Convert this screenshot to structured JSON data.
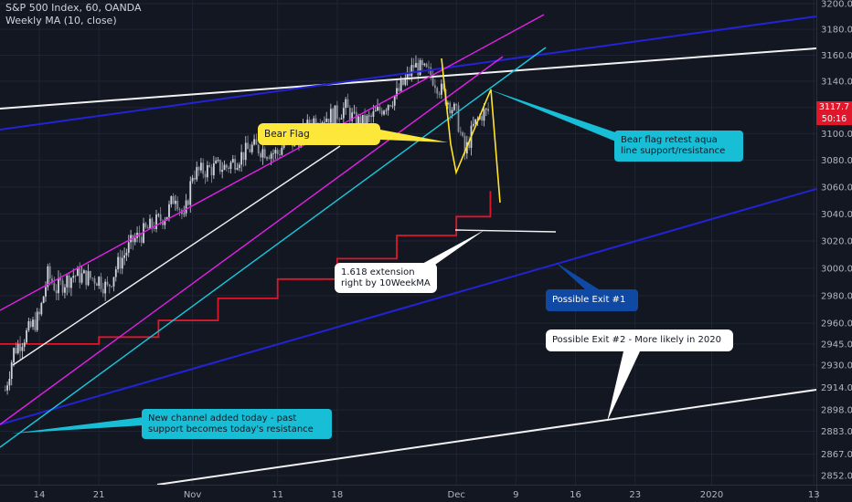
{
  "header": {
    "symbol_line": "S&P 500 Index, 60, OANDA",
    "indicator_line": "Weekly MA (10, close)"
  },
  "price_tags": {
    "last_price": "3117.7",
    "countdown": "50:16"
  },
  "colors": {
    "background": "#131722",
    "grid": "#1f2433",
    "axis_text": "#b2b5be",
    "candle_up": "#cfd3dc",
    "candle_down": "#8c909a",
    "ma_line": "#e0162b",
    "magenta": "#e321e8",
    "aqua": "#17c9dd",
    "blue": "#2323d6",
    "white_line": "#f2f2f2",
    "yellow": "#ffe529",
    "note_yellow": "#fde73a",
    "note_aqua": "#17bed6",
    "note_blue": "#1049a3",
    "note_white": "#ffffff"
  },
  "annotations": {
    "bear_flag": "Bear Flag",
    "bear_flag_retest": "Bear flag retest aqua\nline support/resistance",
    "extension": "1.618 extension\nright by 10WeekMA",
    "possible_exit_1": "Possible Exit #1",
    "possible_exit_2": "Possible Exit #2 - More likely in 2020",
    "new_channel": "New channel added today - past\nsupport becomes today's resistance"
  },
  "chart_data": {
    "type": "candlestick",
    "title": "S&P 500 Index, 60, OANDA",
    "indicator": "Weekly MA (10, close)",
    "x_axis": {
      "unit": "date (late 2019 - early 2020)",
      "tick_labels": [
        "14",
        "21",
        "Nov",
        "11",
        "18",
        "Dec",
        "9",
        "16",
        "23",
        "2020",
        "13"
      ]
    },
    "y_axis": {
      "position": "right",
      "tick_labels": [
        "3200.0",
        "3180.0",
        "3160.0",
        "3140.0",
        "3120.0",
        "3100.0",
        "3080.0",
        "3060.0",
        "3040.0",
        "3020.0",
        "3000.0",
        "2980.0",
        "2960.0",
        "2945.0",
        "2930.0",
        "2914.0",
        "2898.0",
        "2883.0",
        "2867.0",
        "2852.0"
      ],
      "ylim": [
        2846,
        3203
      ],
      "scale": "log"
    },
    "price_path": [
      [
        "Oct 10",
        2912
      ],
      [
        "Oct 11",
        2940
      ],
      [
        "Oct 14",
        2965
      ],
      [
        "Oct 15",
        2995
      ],
      [
        "Oct 16",
        2985
      ],
      [
        "Oct 17",
        2990
      ],
      [
        "Oct 18",
        2995
      ],
      [
        "Oct 21",
        2992
      ],
      [
        "Oct 22",
        2985
      ],
      [
        "Oct 23",
        3000
      ],
      [
        "Oct 24",
        3010
      ],
      [
        "Oct 25",
        3020
      ],
      [
        "Oct 28",
        3035
      ],
      [
        "Oct 29",
        3040
      ],
      [
        "Oct 30",
        3055
      ],
      [
        "Oct 31",
        3035
      ],
      [
        "Nov 1",
        3070
      ],
      [
        "Nov 4",
        3075
      ],
      [
        "Nov 5",
        3075
      ],
      [
        "Nov 6",
        3080
      ],
      [
        "Nov 7",
        3085
      ],
      [
        "Nov 8",
        3090
      ],
      [
        "Nov 11",
        3085
      ],
      [
        "Nov 12",
        3095
      ],
      [
        "Nov 13",
        3093
      ],
      [
        "Nov 14",
        3100
      ],
      [
        "Nov 15",
        3110
      ],
      [
        "Nov 18",
        3115
      ],
      [
        "Nov 19",
        3120
      ],
      [
        "Nov 20",
        3110
      ],
      [
        "Nov 21",
        3108
      ],
      [
        "Nov 22",
        3112
      ],
      [
        "Nov 25",
        3130
      ],
      [
        "Nov 26",
        3140
      ],
      [
        "Nov 27",
        3152
      ],
      [
        "Nov 29",
        3145
      ],
      [
        "Dec 2",
        3115
      ],
      [
        "Dec 3",
        3085
      ],
      [
        "Dec 4",
        3105
      ],
      [
        "Dec 5",
        3115
      ],
      [
        "Dec 6",
        3117.7
      ]
    ],
    "ma_steps": [
      [
        "Oct 7",
        2945
      ],
      [
        "Oct 14",
        2945
      ],
      [
        "Oct 21",
        2950
      ],
      [
        "Oct 28",
        2962
      ],
      [
        "Nov 4",
        2978
      ],
      [
        "Nov 11",
        2992
      ],
      [
        "Nov 18",
        3007
      ],
      [
        "Nov 25",
        3024
      ],
      [
        "Dec 2",
        3038
      ],
      [
        "Dec 6",
        3057
      ]
    ],
    "last_price": 3117.7,
    "grid": true,
    "legend": "top-left"
  }
}
